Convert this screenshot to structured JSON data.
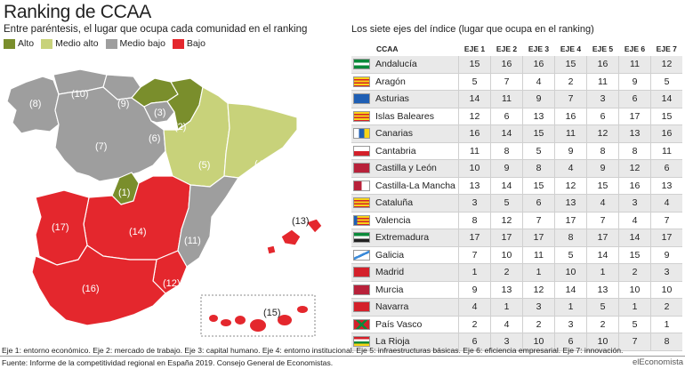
{
  "title": "Ranking de CCAA",
  "subtitle": "Entre paréntesis, el lugar que ocupa cada comunidad en el ranking",
  "legend": [
    {
      "label": "Alto",
      "color": "#7a8e2c"
    },
    {
      "label": "Medio alto",
      "color": "#c8d27a"
    },
    {
      "label": "Medio bajo",
      "color": "#9e9e9e"
    },
    {
      "label": "Bajo",
      "color": "#e4272d"
    }
  ],
  "map_labels": [
    "(8)",
    "(10)",
    "(9)",
    "(3)",
    "(2)",
    "(6)",
    "(7)",
    "(5)",
    "(4)",
    "(1)",
    "(13)",
    "(17)",
    "(14)",
    "(11)",
    "(16)",
    "(12)",
    "(15)"
  ],
  "table_title": "Los siete ejes del índice (lugar que ocupa en el ranking)",
  "chart_data": {
    "type": "table",
    "columns": [
      "CCAA",
      "EJE 1",
      "EJE 2",
      "EJE 3",
      "EJE 4",
      "EJE 5",
      "EJE 6",
      "EJE 7"
    ],
    "rows": [
      {
        "name": "Andalucía",
        "values": [
          15,
          16,
          16,
          15,
          16,
          11,
          12
        ],
        "flag": "andalucia"
      },
      {
        "name": "Aragón",
        "values": [
          5,
          7,
          4,
          2,
          11,
          9,
          5
        ],
        "flag": "aragon"
      },
      {
        "name": "Asturias",
        "values": [
          14,
          11,
          9,
          7,
          3,
          6,
          14
        ],
        "flag": "asturias"
      },
      {
        "name": "Islas Baleares",
        "values": [
          12,
          6,
          13,
          16,
          6,
          17,
          15
        ],
        "flag": "baleares"
      },
      {
        "name": "Canarias",
        "values": [
          16,
          14,
          15,
          11,
          12,
          13,
          16
        ],
        "flag": "canarias"
      },
      {
        "name": "Cantabria",
        "values": [
          11,
          8,
          5,
          9,
          8,
          8,
          11
        ],
        "flag": "cantabria"
      },
      {
        "name": "Castilla y León",
        "values": [
          10,
          9,
          8,
          4,
          9,
          12,
          6
        ],
        "flag": "cyl"
      },
      {
        "name": "Castilla-La Mancha",
        "values": [
          13,
          14,
          15,
          12,
          15,
          16,
          13
        ],
        "flag": "clm"
      },
      {
        "name": "Cataluña",
        "values": [
          3,
          5,
          6,
          13,
          4,
          3,
          4
        ],
        "flag": "cataluna"
      },
      {
        "name": "Valencia",
        "values": [
          8,
          12,
          7,
          17,
          7,
          4,
          7
        ],
        "flag": "valencia"
      },
      {
        "name": "Extremadura",
        "values": [
          17,
          17,
          17,
          8,
          17,
          14,
          17
        ],
        "flag": "extremadura"
      },
      {
        "name": "Galicia",
        "values": [
          7,
          10,
          11,
          5,
          14,
          15,
          9
        ],
        "flag": "galicia"
      },
      {
        "name": "Madrid",
        "values": [
          1,
          2,
          1,
          10,
          1,
          2,
          3
        ],
        "flag": "madrid"
      },
      {
        "name": "Murcia",
        "values": [
          9,
          13,
          12,
          14,
          13,
          10,
          10
        ],
        "flag": "murcia"
      },
      {
        "name": "Navarra",
        "values": [
          4,
          1,
          3,
          1,
          5,
          1,
          2
        ],
        "flag": "navarra"
      },
      {
        "name": "País Vasco",
        "values": [
          2,
          4,
          2,
          3,
          2,
          5,
          1
        ],
        "flag": "paisvasco"
      },
      {
        "name": "La Rioja",
        "values": [
          6,
          3,
          10,
          6,
          10,
          7,
          8
        ],
        "flag": "rioja"
      }
    ]
  },
  "footnote": "Eje 1: entorno económico. Eje 2: mercado de trabajo. Eje 3: capital humano. Eje 4: entorno institucional. Eje 5: infraestructuras básicas. Eje 6: eficiencia empresarial. Eje 7: innovación.",
  "source": "Fuente: Informe de la competitividad regional en España 2019. Consejo General de Economistas.",
  "brand": "elEconomista"
}
